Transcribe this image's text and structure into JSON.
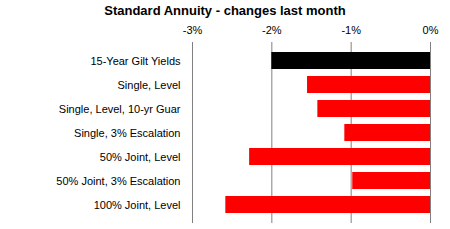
{
  "chart_data": {
    "type": "bar",
    "title": "Standard Annuity - changes last month",
    "orientation": "horizontal",
    "categories": [
      "15-Year Gilt Yields",
      "Single, Level",
      "Single, Level, 10-yr Guar",
      "Single, 3% Escalation",
      "50% Joint, Level",
      "50% Joint, 3% Escalation",
      "100% Joint, Level"
    ],
    "values": [
      -2.0,
      -1.55,
      -1.42,
      -1.08,
      -2.28,
      -0.98,
      -2.58
    ],
    "colors": [
      "#000000",
      "#ff0000",
      "#ff0000",
      "#ff0000",
      "#ff0000",
      "#ff0000",
      "#ff0000"
    ],
    "xlim": [
      -3,
      0
    ],
    "xticks": [
      {
        "value": -3,
        "label": "-3%"
      },
      {
        "value": -2,
        "label": "-2%"
      },
      {
        "value": -1,
        "label": "-1%"
      },
      {
        "value": 0,
        "label": "0%"
      }
    ],
    "grid": true
  }
}
